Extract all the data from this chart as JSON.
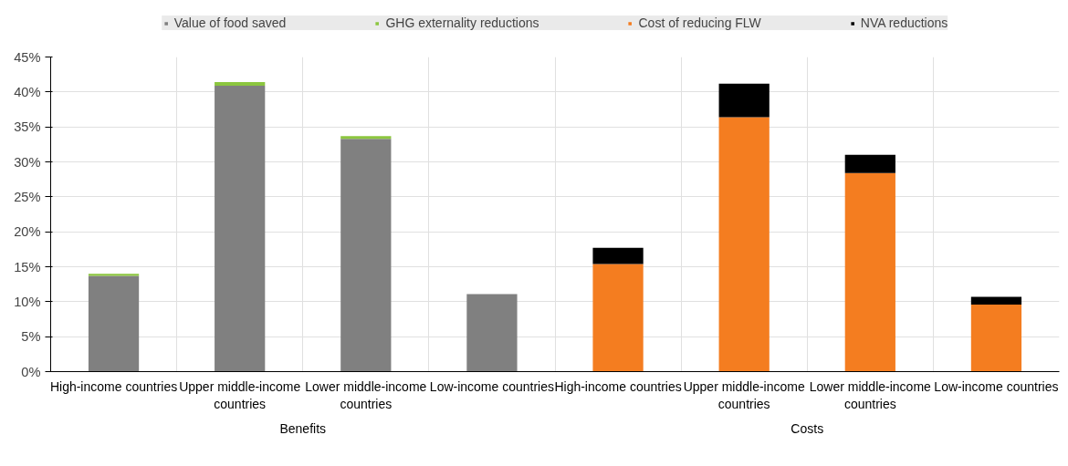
{
  "chart_data": {
    "type": "bar",
    "stacked": true,
    "categories": [
      "High-income countries",
      "Upper middle-income countries",
      "Lower middle-income countries",
      "Low-income countries",
      "High-income countries",
      "Upper middle-income countries",
      "Lower middle-income countries",
      "Low-income countries"
    ],
    "series": [
      {
        "name": "Value of food saved",
        "color": "#808080",
        "values": [
          13.7,
          40.9,
          33.3,
          11.1,
          null,
          null,
          null,
          null
        ]
      },
      {
        "name": "GHG externality reductions",
        "color": "#8cc63f",
        "values": [
          0.3,
          0.5,
          0.4,
          null,
          null,
          null,
          null,
          null
        ]
      },
      {
        "name": "Cost of reducing FLW",
        "color": "#f47d20",
        "values": [
          null,
          null,
          null,
          null,
          15.4,
          36.4,
          28.4,
          9.6
        ]
      },
      {
        "name": "NVA reductions",
        "color": "#000000",
        "values": [
          null,
          null,
          null,
          null,
          2.3,
          4.8,
          2.6,
          1.1
        ]
      }
    ],
    "annotations": [
      "Benefits",
      "Costs"
    ],
    "ylim": [
      0,
      45
    ],
    "yticks": [
      {
        "value": 0,
        "label": "0%"
      },
      {
        "value": 5,
        "label": "5%"
      },
      {
        "value": 10,
        "label": "10%"
      },
      {
        "value": 15,
        "label": "15%"
      },
      {
        "value": 20,
        "label": "20%"
      },
      {
        "value": 25,
        "label": "25%"
      },
      {
        "value": 30,
        "label": "30%"
      },
      {
        "value": 35,
        "label": "35%"
      },
      {
        "value": 40,
        "label": "40%"
      },
      {
        "value": 45,
        "label": "45%"
      }
    ],
    "grid": true,
    "legend": "top"
  }
}
